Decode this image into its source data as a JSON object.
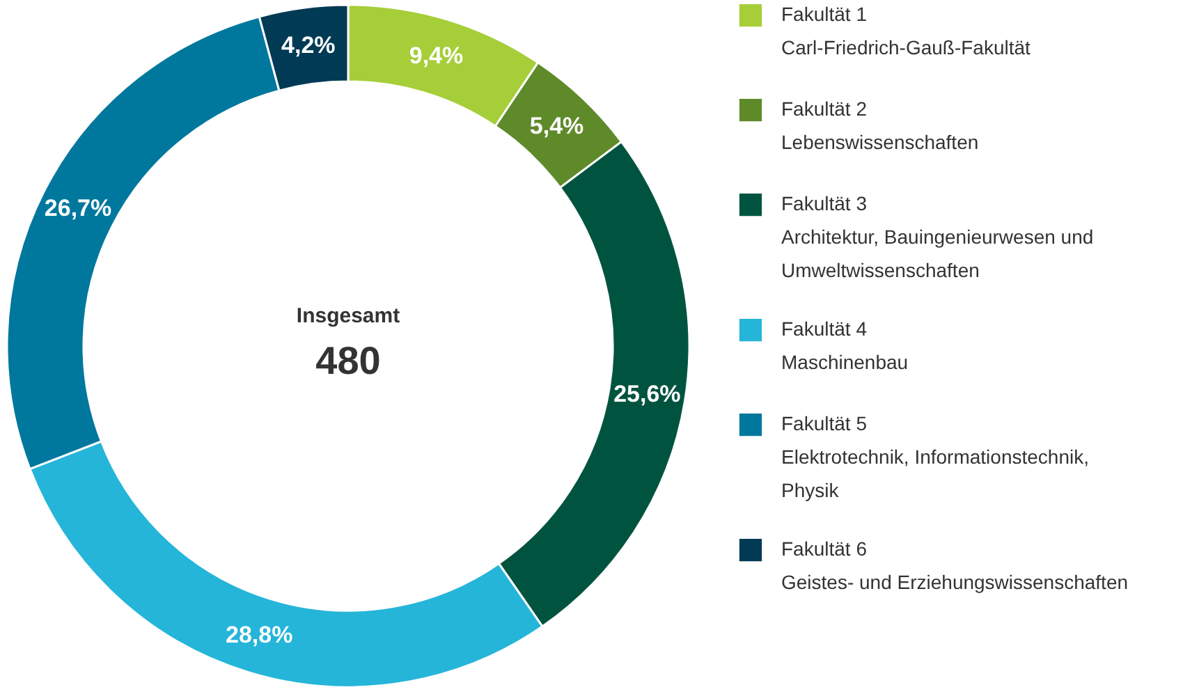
{
  "chart_data": {
    "type": "donut",
    "categories": [
      "Fakultät 1\nCarl-Friedrich-Gauß-Fakultät",
      "Fakultät 2\nLebenswissenschaften",
      "Fakultät 3\nArchitektur, Bauingenieurwesen und\nUmweltwissenschaften",
      "Fakultät 4\nMaschinenbau",
      "Fakultät 5\nElektrotechnik, Informationstechnik,\nPhysik",
      "Fakultät 6\nGeistes- und Erziehungswissenschaften"
    ],
    "values": [
      9.4,
      5.4,
      25.6,
      28.8,
      26.7,
      4.2
    ],
    "value_labels": [
      "9,4%",
      "5,4%",
      "25,6%",
      "28,8%",
      "26,7%",
      "4,2%"
    ],
    "colors": [
      "#a6ce39",
      "#5f8a2a",
      "#00543f",
      "#25b5d9",
      "#00789e",
      "#003a54"
    ],
    "annotations": [
      "Insgesamt",
      "480"
    ],
    "legend": "right"
  }
}
